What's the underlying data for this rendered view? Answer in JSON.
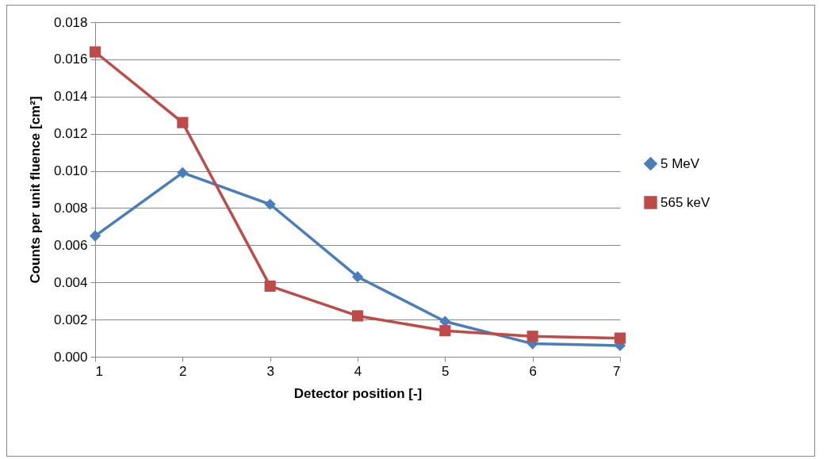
{
  "chart_data": {
    "type": "line",
    "xlabel": "Detector position [-]",
    "ylabel": "Counts per unit fluence [cm²]",
    "x": [
      1,
      2,
      3,
      4,
      5,
      6,
      7
    ],
    "xlim": [
      1,
      7
    ],
    "xticks": [
      1,
      2,
      3,
      4,
      5,
      6,
      7
    ],
    "ylim": [
      0,
      0.018
    ],
    "yticks": [
      {
        "value": 0,
        "label": "0.000"
      },
      {
        "value": 0.002,
        "label": "0.002"
      },
      {
        "value": 0.004,
        "label": "0.004"
      },
      {
        "value": 0.006,
        "label": "0.006"
      },
      {
        "value": 0.008,
        "label": "0.008"
      },
      {
        "value": 0.01,
        "label": "0.010"
      },
      {
        "value": 0.012,
        "label": "0.012"
      },
      {
        "value": 0.014,
        "label": "0.014"
      },
      {
        "value": 0.016,
        "label": "0.016"
      },
      {
        "value": 0.018,
        "label": "0.018"
      }
    ],
    "grid": "y",
    "legend": "right",
    "line_style": "solid",
    "series": [
      {
        "name": "5 MeV",
        "color": "#4a7ebb",
        "marker": "diamond",
        "values": [
          0.0065,
          0.0099,
          0.0082,
          0.0043,
          0.0019,
          0.0007,
          0.0006
        ]
      },
      {
        "name": "565 keV",
        "color": "#be4b48",
        "marker": "square",
        "values": [
          0.0164,
          0.0126,
          0.0038,
          0.0022,
          0.0014,
          0.0011,
          0.001
        ]
      }
    ]
  }
}
